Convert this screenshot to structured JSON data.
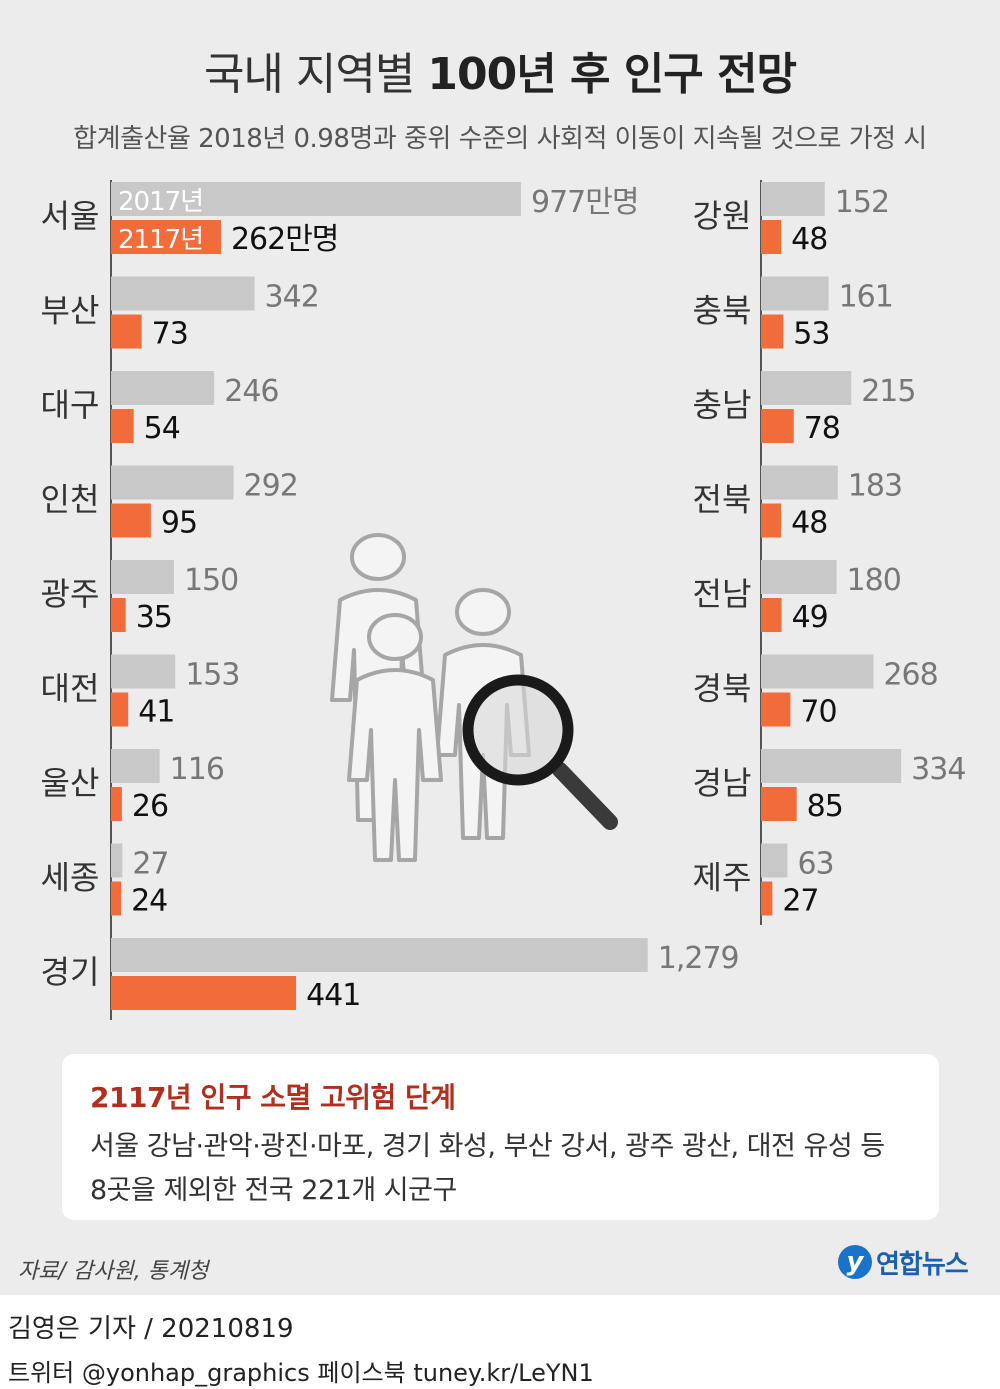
{
  "title_light": "국내 지역별",
  "title_bold": "100년 후 인구 전망",
  "subtitle": "합계출산율 2018년 0.98명과 중위 수준의 사회적 이동이 지속될 것으로 가정 시",
  "colors": {
    "bar_2017": "#c8c8c8",
    "bar_2117": "#f26b3a",
    "label_2017": "#777777",
    "label_2117": "#111111",
    "region": "#333333"
  },
  "chart_data": {
    "type": "bar",
    "orientation": "horizontal",
    "unit": "만명",
    "series": [
      {
        "name": "2017년"
      },
      {
        "name": "2117년"
      }
    ],
    "left_regions": [
      {
        "region": "서울",
        "v2017": 977,
        "v2117": 262,
        "l2017": "977만명",
        "l2117": "262만명"
      },
      {
        "region": "부산",
        "v2017": 342,
        "v2117": 73,
        "l2017": "342",
        "l2117": "73"
      },
      {
        "region": "대구",
        "v2017": 246,
        "v2117": 54,
        "l2017": "246",
        "l2117": "54"
      },
      {
        "region": "인천",
        "v2017": 292,
        "v2117": 95,
        "l2017": "292",
        "l2117": "95"
      },
      {
        "region": "광주",
        "v2017": 150,
        "v2117": 35,
        "l2017": "150",
        "l2117": "35"
      },
      {
        "region": "대전",
        "v2017": 153,
        "v2117": 41,
        "l2017": "153",
        "l2117": "41"
      },
      {
        "region": "울산",
        "v2017": 116,
        "v2117": 26,
        "l2017": "116",
        "l2117": "26"
      },
      {
        "region": "세종",
        "v2017": 27,
        "v2117": 24,
        "l2017": "27",
        "l2117": "24"
      },
      {
        "region": "경기",
        "v2017": 1279,
        "v2117": 441,
        "l2017": "1,279",
        "l2117": "441"
      }
    ],
    "right_regions": [
      {
        "region": "강원",
        "v2017": 152,
        "v2117": 48,
        "l2017": "152",
        "l2117": "48"
      },
      {
        "region": "충북",
        "v2017": 161,
        "v2117": 53,
        "l2017": "161",
        "l2117": "53"
      },
      {
        "region": "충남",
        "v2017": 215,
        "v2117": 78,
        "l2017": "215",
        "l2117": "78"
      },
      {
        "region": "전북",
        "v2017": 183,
        "v2117": 48,
        "l2017": "183",
        "l2117": "48"
      },
      {
        "region": "전남",
        "v2017": 180,
        "v2117": 49,
        "l2017": "180",
        "l2117": "49"
      },
      {
        "region": "경북",
        "v2017": 268,
        "v2117": 70,
        "l2017": "268",
        "l2117": "70"
      },
      {
        "region": "경남",
        "v2017": 334,
        "v2117": 85,
        "l2017": "334",
        "l2117": "85"
      },
      {
        "region": "제주",
        "v2017": 63,
        "v2117": 27,
        "l2017": "63",
        "l2117": "27"
      }
    ]
  },
  "note": {
    "title": "2117년 인구 소멸 고위험 단계",
    "line1": "서울 강남·관악·광진·마포, 경기 화성, 부산 강서, 광주 광산, 대전 유성 등",
    "line2": "8곳을 제외한 전국 221개 시군구"
  },
  "source": "자료/ 감사원, 통계청",
  "logo": "연합뉴스",
  "credit_name": "김영은 기자",
  "credit_date": "20210819",
  "social": "트위터 @yonhap_graphics  페이스북 tuney.kr/LeYN1",
  "icons": [
    "people-icon",
    "magnifier-icon"
  ]
}
